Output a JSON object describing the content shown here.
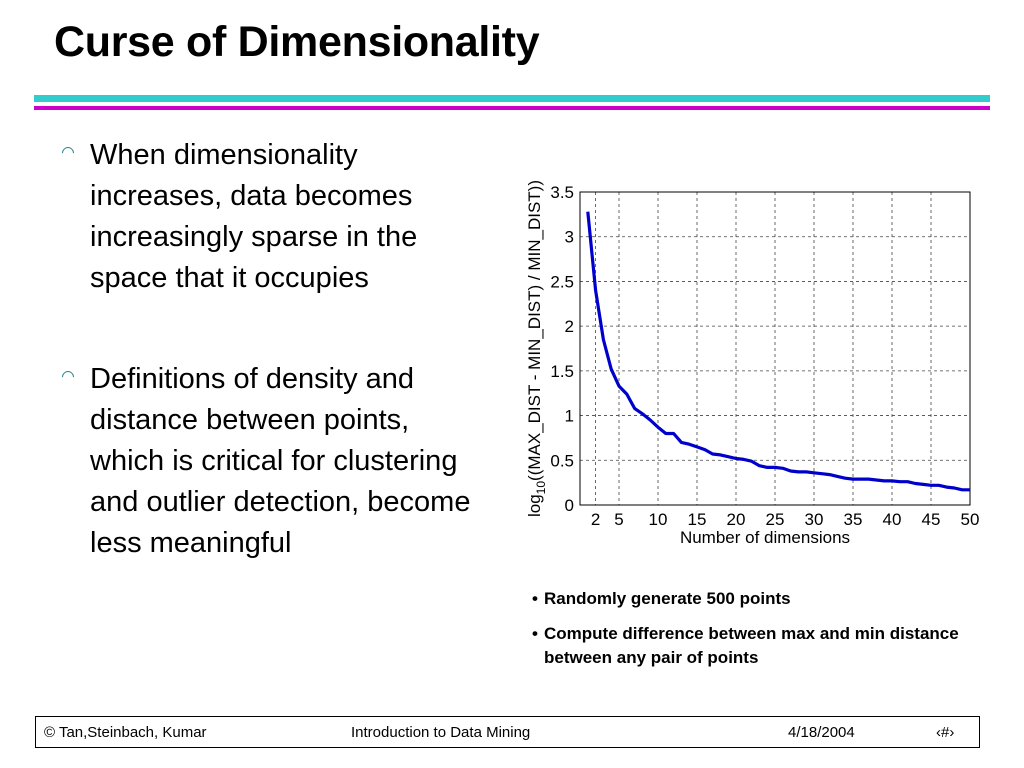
{
  "slide": {
    "title": "Curse of Dimensionality",
    "accent_colors": [
      "#33cccc",
      "#cc00cc"
    ],
    "bullets": [
      "When dimensionality increases, data becomes increasingly sparse in the space that it occupies",
      "Definitions of density and distance between points, which is critical for clustering and outlier detection, become less meaningful"
    ],
    "notes": [
      "Randomly generate 500 points",
      "Compute difference between max and min distance between any pair of points"
    ],
    "footer": {
      "left": "© Tan,Steinbach, Kumar",
      "center": "Introduction to Data Mining",
      "date": "4/18/2004",
      "page": "‹#›"
    }
  },
  "chart_data": {
    "type": "line",
    "xlabel": "Number of dimensions",
    "ylabel_prefix": "log",
    "ylabel_sub": "10",
    "ylabel_rest": "((MAX_DIST - MIN_DIST) / MIN_DIST))",
    "xlim": [
      0,
      50
    ],
    "ylim": [
      0,
      3.5
    ],
    "xticks": [
      2,
      5,
      10,
      15,
      20,
      25,
      30,
      35,
      40,
      45,
      50
    ],
    "yticks": [
      0,
      0.5,
      1,
      1.5,
      2,
      2.5,
      3,
      3.5
    ],
    "grid": true,
    "line_color": "#0000cc",
    "series": [
      {
        "x": [
          1,
          2,
          3,
          4,
          5,
          6,
          7,
          8,
          9,
          10,
          11,
          12,
          13,
          14,
          15,
          16,
          17,
          18,
          19,
          20,
          21,
          22,
          23,
          24,
          25,
          26,
          27,
          28,
          29,
          30,
          31,
          32,
          33,
          34,
          35,
          36,
          37,
          38,
          39,
          40,
          41,
          42,
          43,
          44,
          45,
          46,
          47,
          48,
          49,
          50
        ],
        "values": [
          3.28,
          2.4,
          1.85,
          1.52,
          1.33,
          1.24,
          1.08,
          1.02,
          0.95,
          0.87,
          0.8,
          0.8,
          0.7,
          0.68,
          0.65,
          0.62,
          0.57,
          0.56,
          0.54,
          0.52,
          0.51,
          0.49,
          0.44,
          0.42,
          0.42,
          0.41,
          0.38,
          0.37,
          0.37,
          0.36,
          0.35,
          0.34,
          0.32,
          0.3,
          0.29,
          0.29,
          0.29,
          0.28,
          0.27,
          0.27,
          0.26,
          0.26,
          0.24,
          0.23,
          0.22,
          0.22,
          0.2,
          0.19,
          0.17,
          0.17
        ]
      }
    ]
  }
}
